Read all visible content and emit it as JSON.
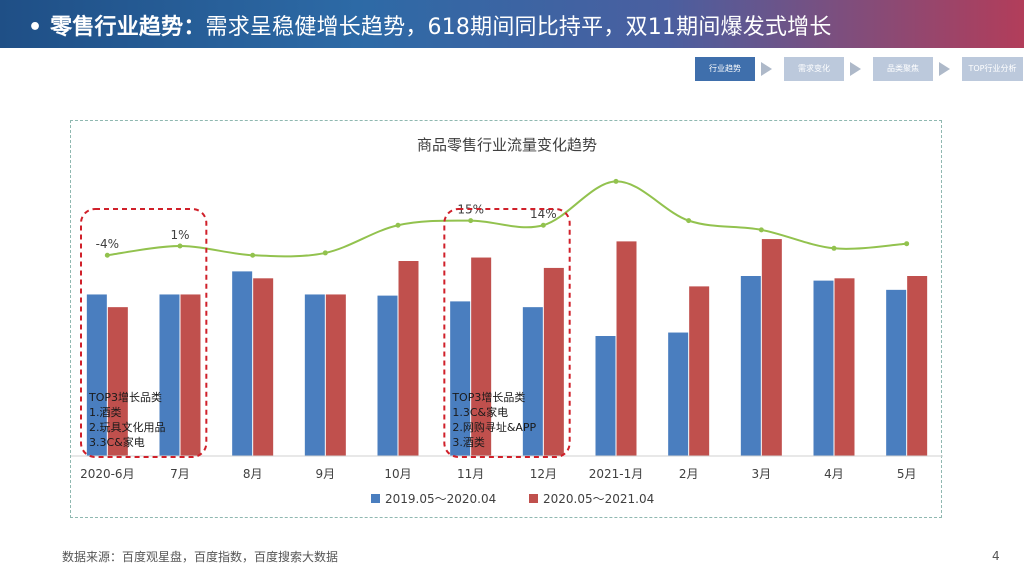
{
  "header": {
    "bullet": "•",
    "title_bold": "零售行业趋势：",
    "title_rest": "需求呈稳健增长趋势，618期间同比持平，双11期间爆发式增长"
  },
  "nav": {
    "steps": [
      "行业趋势",
      "需求变化",
      "品类聚焦",
      "TOP行业分析"
    ],
    "active_index": 0
  },
  "chart_data": {
    "type": "bar",
    "title": "商品零售行业流量变化趋势",
    "categories": [
      "2020-6月",
      "7月",
      "8月",
      "9月",
      "10月",
      "11月",
      "12月",
      "2021-1月",
      "2月",
      "3月",
      "4月",
      "5月"
    ],
    "series": [
      {
        "name": "2019.05～2020.04",
        "color": "#4a7ebf",
        "values": [
          70,
          70,
          80,
          70,
          69.5,
          67,
          64.5,
          52,
          53.5,
          78,
          76,
          72
        ]
      },
      {
        "name": "2020.05～2021.04",
        "color": "#c0504d",
        "values": [
          64.5,
          70,
          77,
          70,
          84.5,
          86,
          81.5,
          93,
          73.5,
          94,
          77,
          78
        ]
      }
    ],
    "trend_line": {
      "color": "#92c24e",
      "values": [
        87,
        91,
        87,
        88,
        100,
        102,
        100,
        119,
        102,
        98,
        90,
        92
      ]
    },
    "annotations": [
      {
        "category_index": 0,
        "label": "-4%"
      },
      {
        "category_index": 1,
        "label": "1%"
      },
      {
        "category_index": 5,
        "label": "15%"
      },
      {
        "category_index": 6,
        "label": "14%"
      }
    ],
    "callouts": [
      {
        "title": "TOP3增长品类",
        "items": [
          "1.酒类",
          "2.玩具文化用品",
          "3.3C&家电"
        ],
        "from": 0,
        "to": 1
      },
      {
        "title": "TOP3增长品类",
        "items": [
          "1.3C&家电",
          "2.网购寻址&APP",
          "3.酒类"
        ],
        "from": 5,
        "to": 6
      }
    ],
    "ylim": [
      0,
      130
    ],
    "grid": false,
    "legend": "bottom-center",
    "xlabel": "",
    "ylabel": ""
  },
  "footer": {
    "source": "数据来源：百度观星盘，百度指数，百度搜索大数据",
    "page": "4"
  }
}
